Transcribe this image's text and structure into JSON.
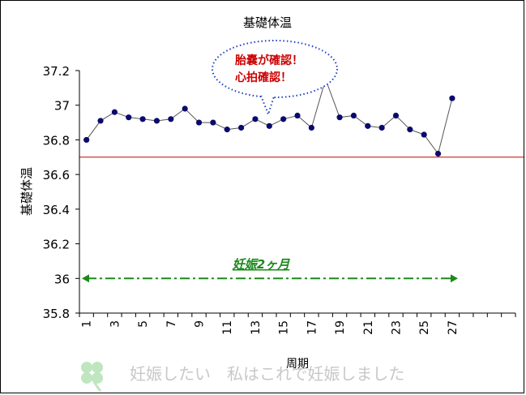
{
  "chart_data": {
    "type": "line",
    "title": "基礎体温",
    "xlabel": "周期",
    "ylabel": "基礎体温",
    "ylim": [
      35.8,
      37.2
    ],
    "yticks": [
      35.8,
      36,
      36.2,
      36.4,
      36.6,
      36.8,
      37,
      37.2
    ],
    "ytick_labels": [
      "35.8",
      "36",
      "36.2",
      "36.4",
      "36.6",
      "36.8",
      "37",
      "37.2"
    ],
    "x_categories": 31,
    "xtick_labels": [
      "1",
      "3",
      "5",
      "7",
      "9",
      "11",
      "13",
      "15",
      "17",
      "19",
      "21",
      "23",
      "25",
      "27"
    ],
    "x": [
      1,
      2,
      3,
      4,
      5,
      6,
      7,
      8,
      9,
      10,
      11,
      12,
      13,
      14,
      15,
      16,
      17,
      18,
      19,
      20,
      21,
      22,
      23,
      24,
      25,
      26,
      27
    ],
    "series": [
      {
        "values": [
          36.8,
          36.91,
          36.96,
          36.93,
          36.92,
          36.91,
          36.92,
          36.98,
          36.9,
          36.9,
          36.86,
          36.87,
          36.92,
          36.88,
          36.92,
          36.94,
          36.87,
          37.15,
          36.93,
          36.94,
          36.88,
          36.87,
          36.94,
          36.86,
          36.83,
          36.72,
          37.04
        ]
      }
    ],
    "reference_line": {
      "value": 36.7,
      "color": "#cc0000"
    },
    "period_arrow": {
      "y": 36.0,
      "label": "妊娠2ヶ月",
      "color": "#1a8a1a"
    },
    "callout": {
      "lines": [
        "胎嚢が確認！",
        "心拍確認！"
      ],
      "color": "#cc0000",
      "border_color": "#1f3fbf"
    },
    "grid": false,
    "colors": {
      "line": "#555555",
      "marker": "#0a0a6e"
    }
  },
  "watermark": {
    "text": "妊娠したい　私はこれで妊娠しました",
    "icon": "clover-icon",
    "color": "#c8c8c8"
  }
}
